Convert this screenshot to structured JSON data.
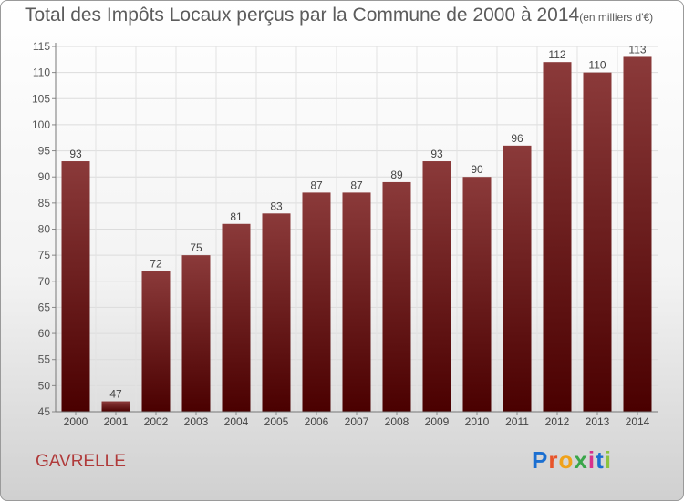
{
  "header": {
    "title": "Total des Impôts Locaux perçus par la Commune de 2000 à 2014",
    "unit": "(en milliers d'€)"
  },
  "footer": {
    "commune": "GAVRELLE",
    "logo_letters": [
      "P",
      "r",
      "o",
      "x",
      "i",
      "t",
      "i"
    ],
    "logo_colors": [
      "#1b6fd1",
      "#e8542a",
      "#f0a21a",
      "#3aa64a",
      "#d8328c",
      "#1b6fd1",
      "#8bc43f"
    ]
  },
  "chart_data": {
    "type": "bar",
    "title": "Total des Impôts Locaux perçus par la Commune de 2000 à 2014",
    "xlabel": "",
    "ylabel": "",
    "categories": [
      "2000",
      "2001",
      "2002",
      "2003",
      "2004",
      "2005",
      "2006",
      "2007",
      "2008",
      "2009",
      "2010",
      "2011",
      "2012",
      "2013",
      "2014"
    ],
    "values": [
      93,
      47,
      72,
      75,
      81,
      83,
      87,
      87,
      89,
      93,
      90,
      96,
      112,
      110,
      113
    ],
    "ylim": [
      45,
      115
    ],
    "yticks": [
      45,
      50,
      55,
      60,
      65,
      70,
      75,
      80,
      85,
      90,
      95,
      100,
      105,
      110,
      115
    ],
    "grid": true,
    "bar_color_top": "#8b3a3a",
    "bar_color_bottom": "#4a0000"
  }
}
